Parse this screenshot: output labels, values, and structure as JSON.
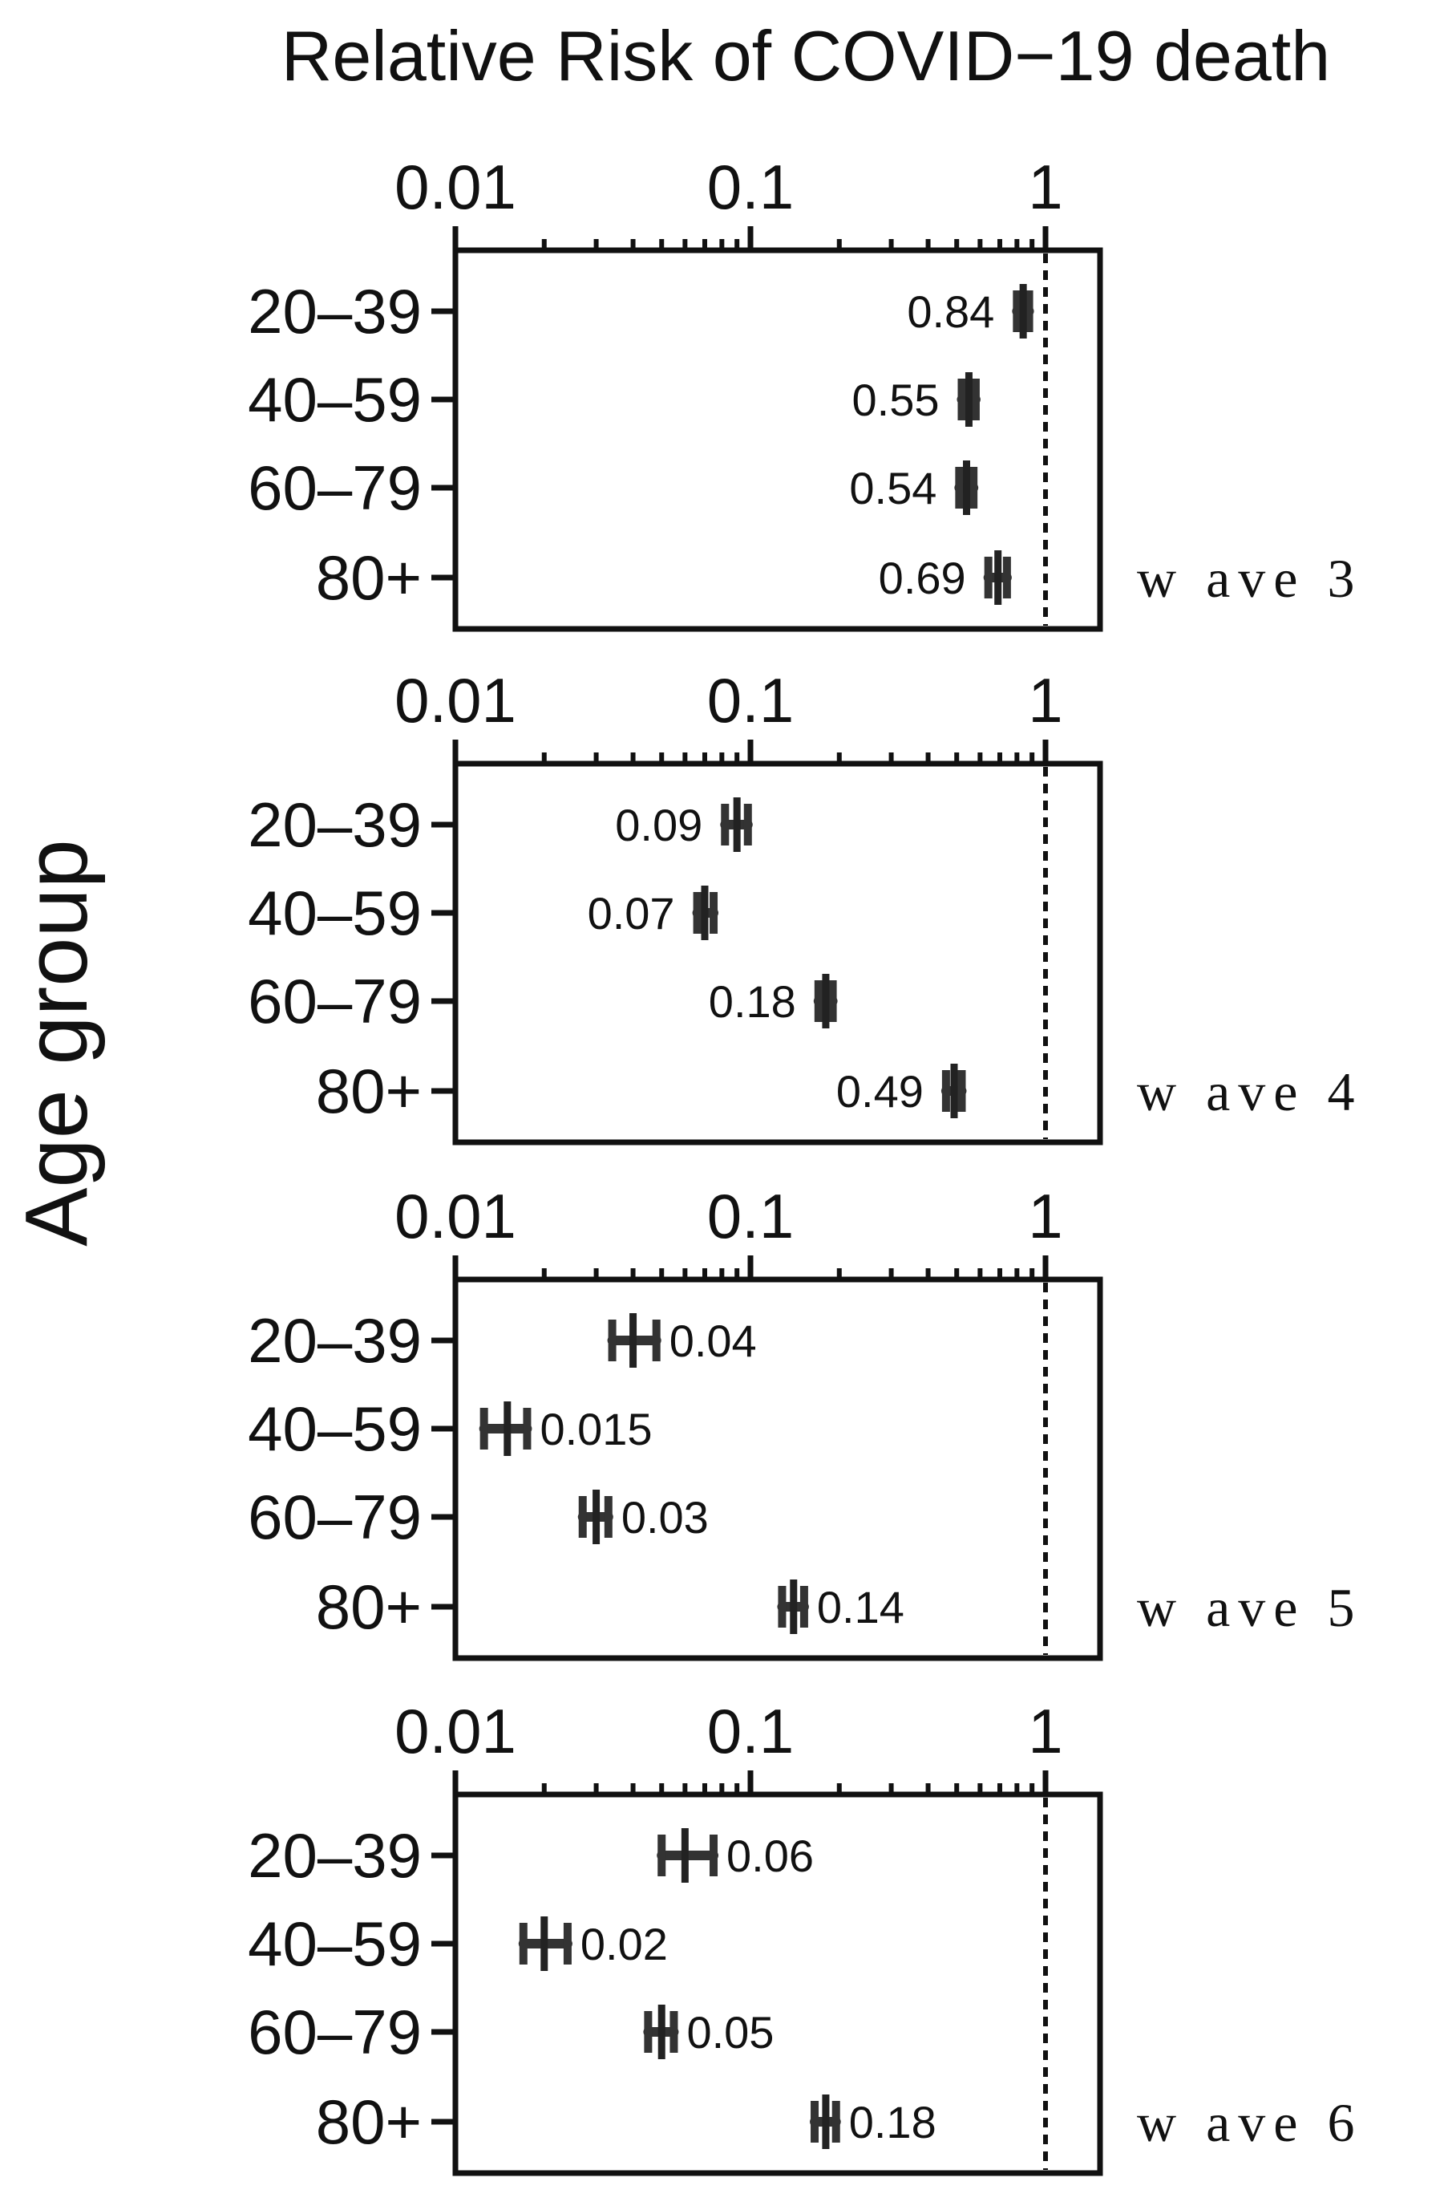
{
  "chart_data": [
    {
      "type": "forest",
      "title": "Relative Risk of COVID−19 death",
      "ylabel": "Age group",
      "label": "w ave 3",
      "x_scale": "log",
      "xlim": [
        0.01,
        1.6
      ],
      "xticks": [
        0.01,
        0.1,
        1
      ],
      "xtick_labels": [
        "0.01",
        "0.1",
        "1"
      ],
      "reference_line": 1,
      "categories": [
        "20–39",
        "40–59",
        "60–79",
        "80+"
      ],
      "values": [
        0.84,
        0.55,
        0.54,
        0.69
      ],
      "value_labels": [
        "0.84",
        "0.55",
        "0.54",
        "0.69"
      ],
      "ci_low": [
        0.8,
        0.52,
        0.51,
        0.64
      ],
      "ci_high": [
        0.88,
        0.58,
        0.57,
        0.74
      ],
      "label_side": [
        "left",
        "left",
        "left",
        "left"
      ]
    },
    {
      "type": "forest",
      "label": "w ave 4",
      "x_scale": "log",
      "xlim": [
        0.01,
        1.6
      ],
      "xticks": [
        0.01,
        0.1,
        1
      ],
      "xtick_labels": [
        "0.01",
        "0.1",
        "1"
      ],
      "reference_line": 1,
      "categories": [
        "20–39",
        "40–59",
        "60–79",
        "80+"
      ],
      "values": [
        0.09,
        0.07,
        0.18,
        0.49
      ],
      "value_labels": [
        "0.09",
        "0.07",
        "0.18",
        "0.49"
      ],
      "ci_low": [
        0.082,
        0.066,
        0.17,
        0.46
      ],
      "ci_high": [
        0.098,
        0.075,
        0.19,
        0.52
      ],
      "label_side": [
        "left",
        "left",
        "left",
        "left"
      ]
    },
    {
      "type": "forest",
      "label": "w ave 5",
      "x_scale": "log",
      "xlim": [
        0.01,
        1.6
      ],
      "xticks": [
        0.01,
        0.1,
        1
      ],
      "xtick_labels": [
        "0.01",
        "0.1",
        "1"
      ],
      "reference_line": 1,
      "categories": [
        "20–39",
        "40–59",
        "60–79",
        "80+"
      ],
      "values": [
        0.04,
        0.015,
        0.03,
        0.14
      ],
      "value_labels": [
        "0.04",
        "0.015",
        "0.03",
        "0.14"
      ],
      "ci_low": [
        0.034,
        0.0125,
        0.027,
        0.128
      ],
      "ci_high": [
        0.048,
        0.0175,
        0.033,
        0.152
      ],
      "label_side": [
        "right",
        "right",
        "right",
        "right"
      ]
    },
    {
      "type": "forest",
      "label": "w ave 6",
      "x_scale": "log",
      "xlim": [
        0.01,
        1.6
      ],
      "xticks": [
        0.01,
        0.1,
        1
      ],
      "xtick_labels": [
        "0.01",
        "0.1",
        "1"
      ],
      "reference_line": 1,
      "categories": [
        "20–39",
        "40–59",
        "60–79",
        "80+"
      ],
      "values": [
        0.06,
        0.02,
        0.05,
        0.18
      ],
      "value_labels": [
        "0.06",
        "0.02",
        "0.05",
        "0.18"
      ],
      "ci_low": [
        0.05,
        0.017,
        0.045,
        0.165
      ],
      "ci_high": [
        0.075,
        0.024,
        0.055,
        0.195
      ],
      "label_side": [
        "right",
        "right",
        "right",
        "right"
      ]
    }
  ]
}
